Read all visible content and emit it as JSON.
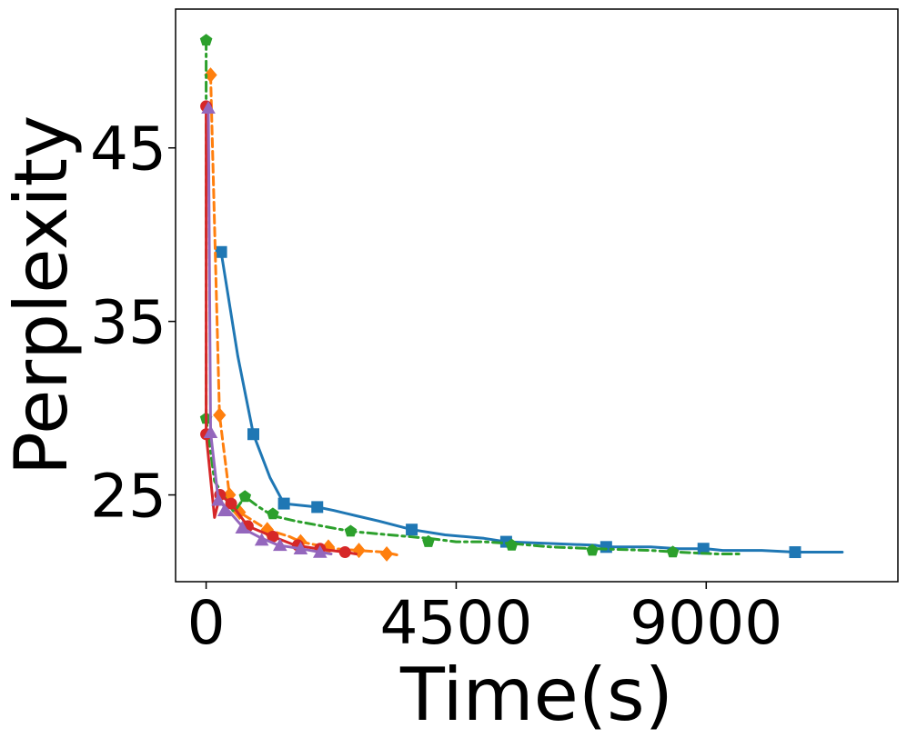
{
  "chart_data": {
    "type": "line",
    "title": "",
    "xlabel": "Time(s)",
    "ylabel": "Perplexity",
    "xlim": [
      -550,
      12450
    ],
    "ylim": [
      20,
      53
    ],
    "xticks": [
      0,
      4500,
      9000
    ],
    "yticks": [
      25,
      35,
      45
    ],
    "grid": false,
    "legend": "none",
    "series": [
      {
        "color": "#1f77b4",
        "line_style": "solid",
        "marker": "square",
        "points": [
          [
            270,
            39.0
          ],
          [
            570,
            33.0
          ],
          [
            850,
            28.5
          ],
          [
            1150,
            26.0
          ],
          [
            1400,
            24.5
          ],
          [
            1700,
            24.4
          ],
          [
            2000,
            24.3
          ],
          [
            2300,
            24.1
          ],
          [
            2700,
            23.8
          ],
          [
            3100,
            23.5
          ],
          [
            3700,
            23.0
          ],
          [
            4300,
            22.7
          ],
          [
            5000,
            22.5
          ],
          [
            5400,
            22.3
          ],
          [
            6200,
            22.2
          ],
          [
            7000,
            22.1
          ],
          [
            7200,
            22.0
          ],
          [
            8000,
            22.0
          ],
          [
            8500,
            21.9
          ],
          [
            9000,
            21.9
          ],
          [
            9300,
            21.8
          ],
          [
            10000,
            21.8
          ],
          [
            10600,
            21.7
          ],
          [
            11450,
            21.7
          ]
        ],
        "marker_points": [
          [
            270,
            39.0
          ],
          [
            850,
            28.5
          ],
          [
            1400,
            24.5
          ],
          [
            2000,
            24.3
          ],
          [
            3700,
            23.0
          ],
          [
            5400,
            22.3
          ],
          [
            7200,
            22.0
          ],
          [
            8950,
            21.9
          ],
          [
            10600,
            21.7
          ]
        ]
      },
      {
        "color": "#ff7f0e",
        "line_style": "dashed",
        "marker": "diamond",
        "points": [
          [
            80,
            49.2
          ],
          [
            240,
            29.6
          ],
          [
            420,
            25.0
          ],
          [
            600,
            24.0
          ],
          [
            800,
            23.6
          ],
          [
            1100,
            23.0
          ],
          [
            1500,
            22.6
          ],
          [
            1700,
            22.3
          ],
          [
            2000,
            22.1
          ],
          [
            2300,
            21.9
          ],
          [
            2750,
            21.8
          ],
          [
            3200,
            21.7
          ],
          [
            3500,
            21.5
          ]
        ],
        "marker_points": [
          [
            80,
            49.2
          ],
          [
            240,
            29.6
          ],
          [
            420,
            25.0
          ],
          [
            600,
            24.0
          ],
          [
            1100,
            23.0
          ],
          [
            1700,
            22.3
          ],
          [
            2200,
            22.0
          ],
          [
            2750,
            21.8
          ],
          [
            3250,
            21.6
          ]
        ]
      },
      {
        "color": "#2ca02c",
        "line_style": "dashdot",
        "marker": "pentagon",
        "points": [
          [
            0,
            51.2
          ],
          [
            0,
            29.4
          ],
          [
            150,
            25.8
          ],
          [
            500,
            24.0
          ],
          [
            700,
            24.9
          ],
          [
            950,
            24.3
          ],
          [
            1200,
            23.8
          ],
          [
            1600,
            23.5
          ],
          [
            2100,
            23.2
          ],
          [
            2600,
            22.9
          ],
          [
            3300,
            22.7
          ],
          [
            4000,
            22.5
          ],
          [
            4500,
            22.3
          ],
          [
            5000,
            22.3
          ],
          [
            5500,
            22.2
          ],
          [
            6200,
            22.0
          ],
          [
            7000,
            21.9
          ],
          [
            8000,
            21.8
          ],
          [
            8500,
            21.7
          ],
          [
            9200,
            21.6
          ],
          [
            9600,
            21.6
          ]
        ],
        "marker_points": [
          [
            0,
            51.2
          ],
          [
            0,
            29.4
          ],
          [
            700,
            24.9
          ],
          [
            1200,
            23.9
          ],
          [
            2600,
            22.9
          ],
          [
            4000,
            22.3
          ],
          [
            5500,
            22.1
          ],
          [
            6950,
            21.8
          ],
          [
            8400,
            21.7
          ]
        ]
      },
      {
        "color": "#d62728",
        "line_style": "solid",
        "marker": "circle",
        "points": [
          [
            0,
            47.4
          ],
          [
            0,
            28.5
          ],
          [
            150,
            23.7
          ],
          [
            250,
            25.0
          ],
          [
            450,
            24.5
          ],
          [
            750,
            23.2
          ],
          [
            1200,
            22.6
          ],
          [
            1600,
            22.1
          ],
          [
            2000,
            21.9
          ],
          [
            2500,
            21.7
          ],
          [
            2700,
            21.6
          ]
        ],
        "marker_points": [
          [
            0,
            47.4
          ],
          [
            0,
            28.5
          ],
          [
            250,
            25.0
          ],
          [
            450,
            24.5
          ],
          [
            750,
            23.2
          ],
          [
            1200,
            22.6
          ],
          [
            1650,
            22.1
          ],
          [
            2050,
            21.9
          ],
          [
            2500,
            21.7
          ]
        ]
      },
      {
        "color": "#9467bd",
        "line_style": "solid",
        "marker": "triangle",
        "points": [
          [
            40,
            47.3
          ],
          [
            80,
            28.6
          ],
          [
            220,
            24.7
          ],
          [
            400,
            24.1
          ],
          [
            700,
            23.0
          ],
          [
            1000,
            22.5
          ],
          [
            1300,
            22.1
          ],
          [
            1700,
            21.9
          ],
          [
            2050,
            21.7
          ],
          [
            2250,
            21.6
          ]
        ],
        "marker_points": [
          [
            40,
            47.3
          ],
          [
            80,
            28.6
          ],
          [
            220,
            24.7
          ],
          [
            330,
            24.1
          ],
          [
            650,
            23.1
          ],
          [
            1000,
            22.4
          ],
          [
            1330,
            22.1
          ],
          [
            1700,
            21.9
          ],
          [
            2050,
            21.7
          ]
        ]
      }
    ]
  }
}
